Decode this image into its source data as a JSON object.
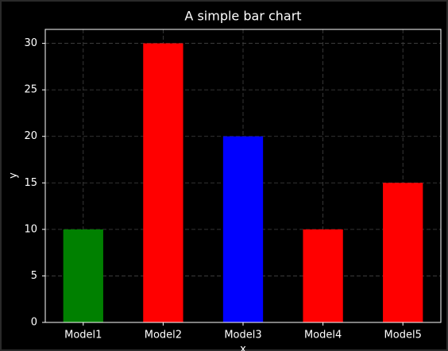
{
  "chart_data": {
    "type": "bar",
    "title": "A simple bar chart",
    "x_label": "x",
    "y_label": "y",
    "categories": [
      "Model1",
      "Model2",
      "Model3",
      "Model4",
      "Model5"
    ],
    "values": [
      10,
      30,
      20,
      10,
      15
    ],
    "colors": [
      "#008000",
      "#ff0000",
      "#0000ff",
      "#ff0000",
      "#ff0000"
    ],
    "ylim": [
      0,
      31.5
    ],
    "yticks": [
      0,
      5,
      10,
      15,
      20,
      25,
      30
    ],
    "grid": true
  }
}
